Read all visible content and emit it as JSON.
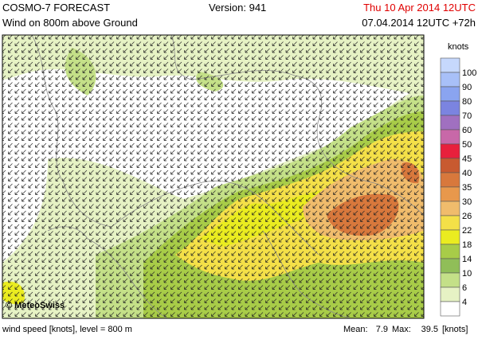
{
  "header": {
    "title": "COSMO-7 FORECAST",
    "version": "Version: 941",
    "valid_time": "Thu 10 Apr 2014 12UTC",
    "subtitle": "Wind on 800m above Ground",
    "run": "07.04.2014 12UTC +72h"
  },
  "map": {
    "copyright": "© MeteoSwiss"
  },
  "legend": {
    "title": "knots",
    "labels": [
      "100",
      "90",
      "80",
      "70",
      "60",
      "50",
      "45",
      "40",
      "35",
      "30",
      "26",
      "22",
      "18",
      "14",
      "10",
      "6",
      "4"
    ],
    "colors": [
      "#c6d8fc",
      "#a8c0f8",
      "#8aa4f0",
      "#7b84e0",
      "#a070c0",
      "#c868a8",
      "#e8203c",
      "#c85a30",
      "#d8783c",
      "#e8984c",
      "#f0bc6c",
      "#f4e048",
      "#eaec20",
      "#a8cc48",
      "#90be58",
      "#c4e088",
      "#e6f2c4",
      "#ffffff"
    ]
  },
  "footer": {
    "description": "wind speed [knots], level = 800 m",
    "mean_label": "Mean:",
    "mean": "7.9",
    "max_label": "Max:",
    "max": "39.5",
    "unit": "[knots]"
  }
}
